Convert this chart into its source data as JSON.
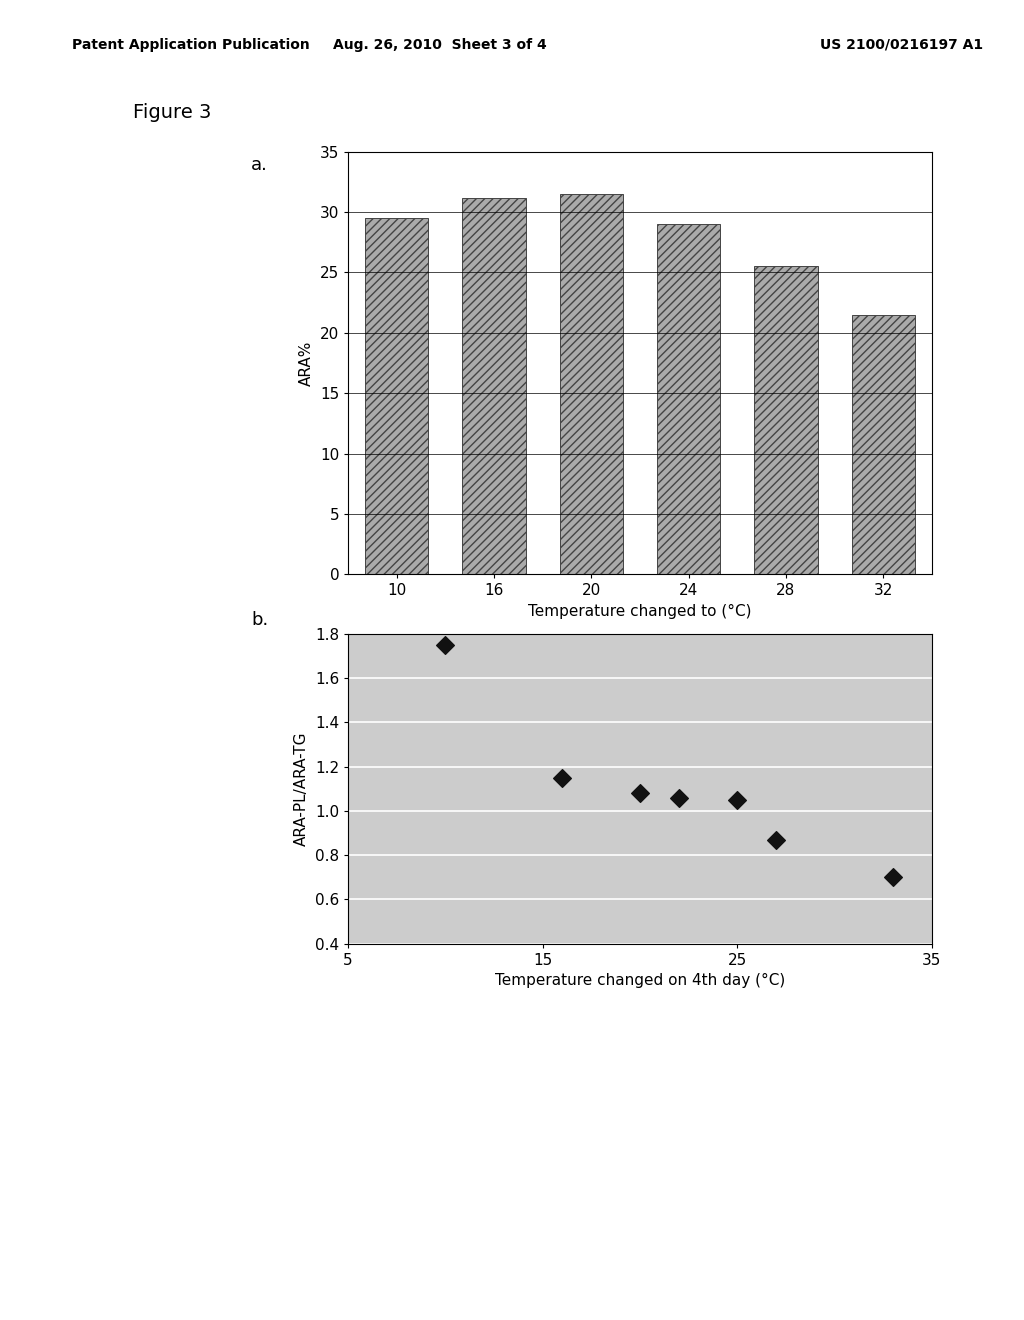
{
  "header_left": "Patent Application Publication",
  "header_center": "Aug. 26, 2010  Sheet 3 of 4",
  "header_right": "US 2100/0216197 A1",
  "figure_label": "Figure 3",
  "chart_a": {
    "label": "a.",
    "categories": [
      10,
      16,
      20,
      24,
      28,
      32
    ],
    "values": [
      29.5,
      31.2,
      31.5,
      29.0,
      25.5,
      21.5
    ],
    "ylabel": "ARA%",
    "xlabel": "Temperature changed to (°C)",
    "ylim": [
      0,
      35
    ],
    "yticks": [
      0,
      5,
      10,
      15,
      20,
      25,
      30,
      35
    ],
    "bar_color": "#aaaaaa",
    "bar_hatch": "////",
    "bar_edgecolor": "#444444"
  },
  "chart_b": {
    "label": "b.",
    "x": [
      10,
      16,
      20,
      22,
      25,
      27,
      33
    ],
    "y": [
      1.75,
      1.15,
      1.08,
      1.06,
      1.05,
      0.87,
      0.7
    ],
    "ylabel": "ARA-PL/ARA-TG",
    "xlabel": "Temperature changed on 4th day (°C)",
    "ylim": [
      0.4,
      1.8
    ],
    "xlim": [
      5,
      35
    ],
    "yticks": [
      0.4,
      0.6,
      0.8,
      1.0,
      1.2,
      1.4,
      1.6,
      1.8
    ],
    "xticks": [
      5,
      15,
      25,
      35
    ],
    "marker_color": "#111111",
    "marker": "D",
    "marker_size": 9,
    "bg_color": "#cccccc"
  },
  "background_color": "#ffffff",
  "text_color": "#000000",
  "font_size_header": 10,
  "font_size_figure_label": 14,
  "font_size_sublabel": 13,
  "font_size_axis_label": 11,
  "font_size_tick": 11
}
